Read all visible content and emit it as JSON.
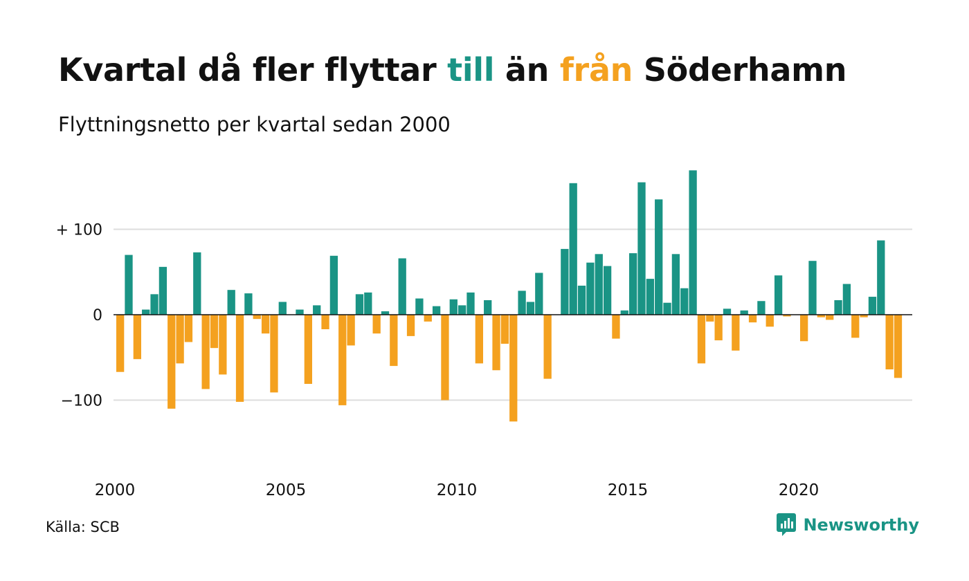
{
  "title": {
    "part1": "Kvartal då fler flyttar ",
    "pos_word": "till",
    "part2": " än ",
    "neg_word": "från",
    "part3": " Söderhamn"
  },
  "subtitle": "Flyttningsnetto per kvartal sedan 2000",
  "source": "Källa: SCB",
  "brand": "Newsworthy",
  "colors": {
    "positive": "#1a9485",
    "negative": "#f4a11f",
    "grid": "#dddddd",
    "zero_line": "#111111"
  },
  "chart_data": {
    "type": "bar",
    "x_start_year": 2000,
    "periods_per_year": 4,
    "x_tick_labels": [
      "2000",
      "2005",
      "2010",
      "2015",
      "2020"
    ],
    "y_ticks": [
      100,
      0,
      -100
    ],
    "y_tick_labels": [
      "+ 100",
      "0",
      "−100"
    ],
    "ylim": [
      -150,
      175
    ],
    "grid": true,
    "values": [
      -67,
      70,
      -52,
      6,
      24,
      56,
      -110,
      -57,
      -32,
      73,
      -87,
      -39,
      -70,
      29,
      -102,
      25,
      -5,
      -22,
      -91,
      15,
      0,
      6,
      -81,
      11,
      -17,
      69,
      -106,
      -36,
      24,
      26,
      -22,
      4,
      -60,
      66,
      -25,
      19,
      -8,
      10,
      -100,
      18,
      11,
      26,
      -57,
      17,
      -65,
      -34,
      -125,
      28,
      15,
      49,
      -75,
      0,
      77,
      154,
      34,
      61,
      71,
      57,
      -28,
      5,
      72,
      155,
      42,
      135,
      14,
      71,
      31,
      169,
      -57,
      -8,
      -30,
      7,
      -42,
      5,
      -9,
      16,
      -14,
      46,
      -2,
      0,
      -31,
      63,
      -3,
      -6,
      17,
      36,
      -27,
      -3,
      21,
      87,
      -64,
      -74
    ]
  }
}
